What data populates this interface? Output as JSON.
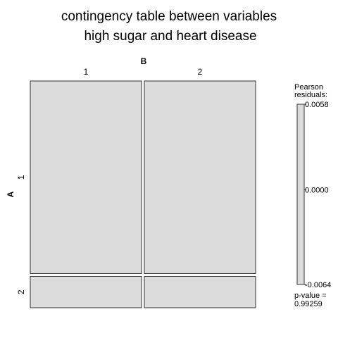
{
  "chart_data": {
    "type": "mosaic",
    "title_lines": [
      "contingency table between variables",
      "high sugar and heart disease"
    ],
    "row_variable": "A",
    "col_variable": "B",
    "row_levels": [
      "1",
      "2"
    ],
    "col_levels": [
      "1",
      "2"
    ],
    "row_proportions": [
      0.86,
      0.14
    ],
    "col_proportions": [
      0.5,
      0.5
    ],
    "cells": [
      {
        "row": "1",
        "col": "1",
        "residual": 0.0
      },
      {
        "row": "1",
        "col": "2",
        "residual": 0.0
      },
      {
        "row": "2",
        "col": "1",
        "residual": 0.0
      },
      {
        "row": "2",
        "col": "2",
        "residual": 0.0
      }
    ],
    "legend": {
      "title_lines": [
        "Pearson",
        "residuals:"
      ],
      "max": 0.0058,
      "mid": 0.0,
      "min": -0.0064,
      "max_label": "0.0058",
      "mid_label": "0.0000",
      "min_label": "-0.0064",
      "pvalue_lines": [
        "p-value =",
        "0.99259"
      ]
    },
    "cell_color": "#dcdcdc",
    "border_color": "#333333"
  }
}
